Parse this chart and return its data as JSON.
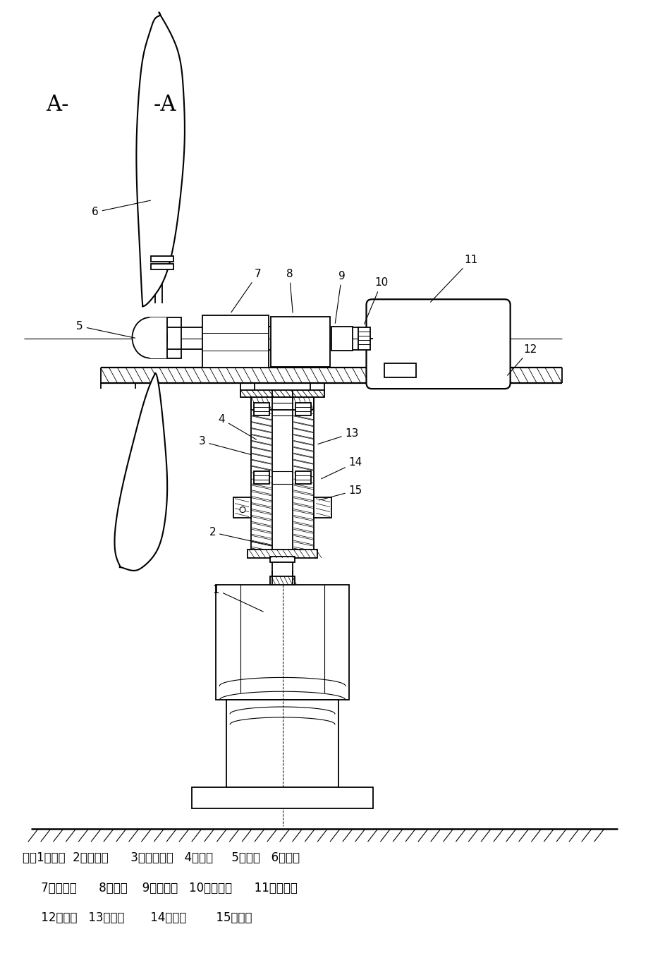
{
  "fig_width": 9.26,
  "fig_height": 13.51,
  "background_color": "#ffffff",
  "line_color": "#000000",
  "annotation_line1": "注：1、塔筒  2、定位轴      3、蕃杆支架4、蕃杆     5、轮毅   6、叶片",
  "annotation_line2": "    7、轴承筱      8、主轴    9、增速器   10、联轴器      11、发电机",
  "annotation_line3": "    12、台板   13、轴套       14、轴承        15、蕃轮"
}
